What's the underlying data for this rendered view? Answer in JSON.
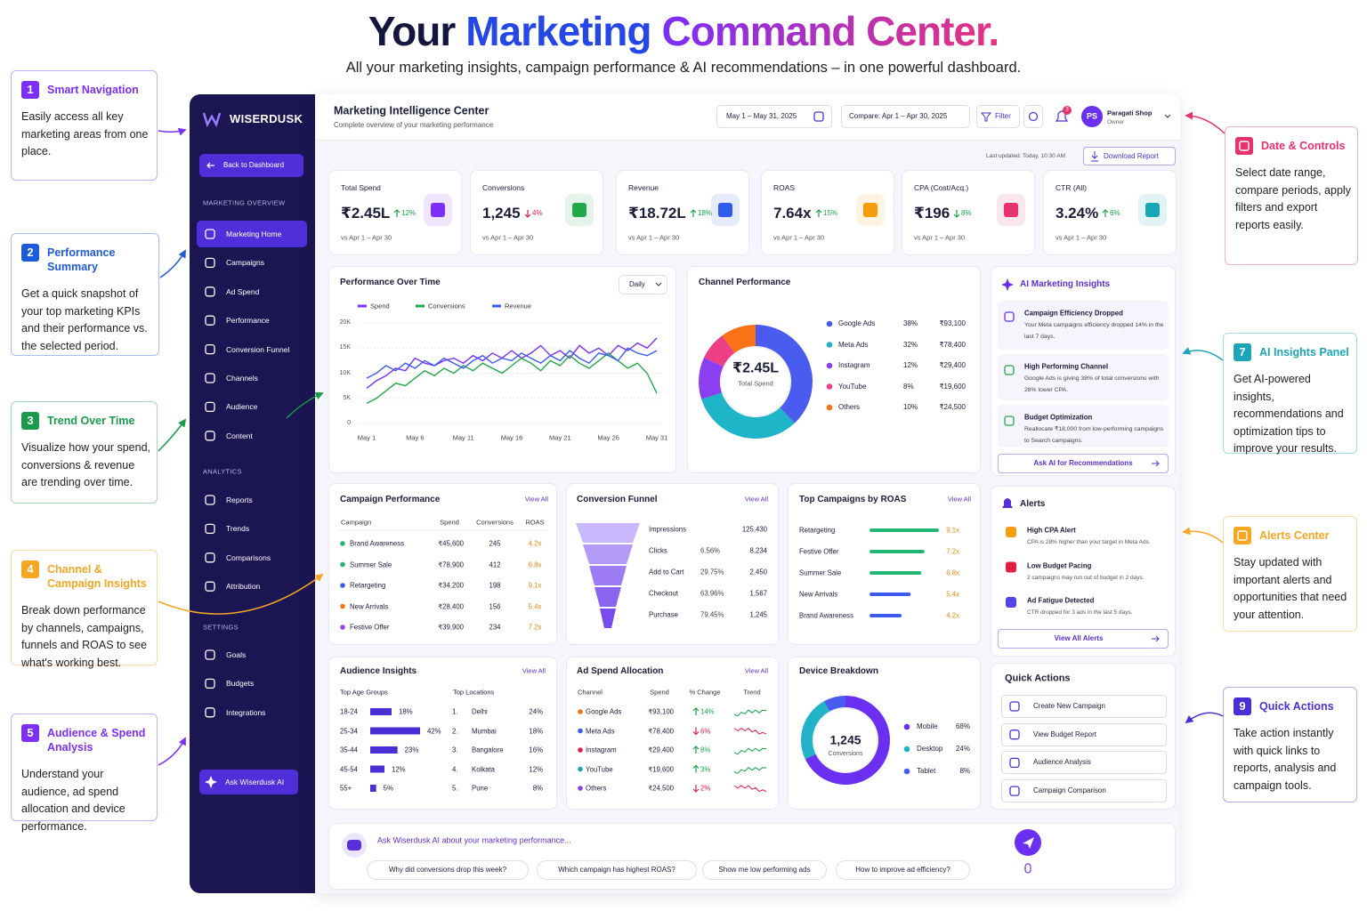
{
  "hero": {
    "title_parts": [
      "Your",
      "Marketing",
      "Command Center."
    ],
    "subtitle": "All your marketing insights, campaign performance & AI recommendations – in one powerful dashboard."
  },
  "callouts": [
    {
      "number": "1",
      "title": "Smart Navigation",
      "text": "Easily access all key marketing areas from one place.",
      "color": "#7b2ff7"
    },
    {
      "number": "2",
      "title": "Performance Summary",
      "text": "Get a quick snapshot of your top marketing KPIs and their performance vs. the selected period.",
      "color": "#1e5bd8"
    },
    {
      "number": "3",
      "title": "Trend Over Time",
      "text": "Visualize how your spend, conversions & revenue are trending over time.",
      "color": "#1a9a4a"
    },
    {
      "number": "4",
      "title": "Channel & Campaign Insights",
      "text": "Break down performance by channels, campaigns, funnels and ROAS to see what's working best.",
      "color": "#f5a623"
    },
    {
      "number": "5",
      "title": "Audience & Spend Analysis",
      "text": "Understand your audience, ad spend allocation and device performance.",
      "color": "#7b2ff7"
    },
    {
      "title": "Date & Controls",
      "text": "Select date range, compare periods, apply filters and export reports easily.",
      "color": "#e8326e"
    },
    {
      "number": "7",
      "title": "AI Insights Panel",
      "text": "Get AI-powered insights, recommendations and optimization tips to improve your results.",
      "color": "#1aa6b7"
    },
    {
      "title": "Alerts Center",
      "text": "Stay updated with important alerts and opportunities that need your attention.",
      "color": "#f5a623"
    },
    {
      "number": "9",
      "title": "Quick Actions",
      "text": "Take action instantly with quick links to reports, analysis and campaign tools.",
      "color": "#4b2fd6"
    }
  ],
  "sidebar": {
    "brand": "WISERDUSK",
    "back": "Back to Dashboard",
    "active": "Marketing Home",
    "sections": [
      {
        "title": "MARKETING OVERVIEW",
        "items": [
          "Marketing Home",
          "Campaigns",
          "Ad Spend",
          "Performance",
          "Conversion Funnel",
          "Channels",
          "Audience",
          "Content"
        ]
      },
      {
        "title": "ANALYTICS",
        "items": [
          "Reports",
          "Trends",
          "Comparisons",
          "Attribution"
        ]
      },
      {
        "title": "SETTINGS",
        "items": [
          "Goals",
          "Budgets",
          "Integrations"
        ]
      }
    ],
    "ask": "Ask Wiserdusk AI"
  },
  "header": {
    "title": "Marketing Intelligence Center",
    "subtitle": "Complete overview of your marketing performance",
    "date": "May 1 – May 31, 2025",
    "compare": "Compare: Apr 1 – Apr 30, 2025",
    "filter": "Filter",
    "notifications": "3",
    "avatar": "PS",
    "user": "Paragati Shop",
    "role": "Owner",
    "updated": "Last updated: Today, 10:30 AM",
    "download": "Download Report"
  },
  "kpis": [
    {
      "label": "Total Spend",
      "value": "₹2.45L",
      "change": "12%",
      "direction": "up",
      "color": "#16a34a",
      "icon_color": "#7b2ff7",
      "period": "vs Apr 1 – Apr 30"
    },
    {
      "label": "Conversions",
      "value": "1,245",
      "change": "4%",
      "direction": "down",
      "color": "#e11d48",
      "icon_color": "#22a84a",
      "period": "vs Apr 1 – Apr 30"
    },
    {
      "label": "Revenue",
      "value": "₹18.72L",
      "change": "18%",
      "direction": "up",
      "color": "#16a34a",
      "icon_color": "#2f5bea",
      "period": "vs Apr 1 – Apr 30"
    },
    {
      "label": "ROAS",
      "value": "7.64x",
      "change": "15%",
      "direction": "up",
      "color": "#16a34a",
      "icon_color": "#f59e0b",
      "period": "vs Apr 1 – Apr 30"
    },
    {
      "label": "CPA (Cost/Acq.)",
      "value": "₹196",
      "change": "8%",
      "direction": "down",
      "color": "#16a34a",
      "icon_color": "#e8326e",
      "period": "vs Apr 1 – Apr 30"
    },
    {
      "label": "CTR (All)",
      "value": "3.24%",
      "change": "6%",
      "direction": "up",
      "color": "#16a34a",
      "icon_color": "#1aa6b7",
      "period": "vs Apr 1 – Apr 30"
    }
  ],
  "performance_chart": {
    "type": "line",
    "title": "Performance Over Time",
    "period": "Daily",
    "categories": [
      "May 1",
      null,
      null,
      null,
      null,
      "May 6",
      null,
      null,
      null,
      null,
      "May 11",
      null,
      null,
      null,
      null,
      "May 16",
      null,
      null,
      null,
      null,
      "May 21",
      null,
      null,
      null,
      null,
      "May 26",
      null,
      null,
      null,
      null,
      "May 31"
    ],
    "series": [
      {
        "name": "Spend",
        "color": "#7b2ff7",
        "values": [
          7000,
          8500,
          9500,
          11000,
          10500,
          13000,
          12000,
          11500,
          12500,
          13000,
          12000,
          13500,
          12500,
          14000,
          13000,
          14500,
          13000,
          14000,
          15500,
          13500,
          14500,
          13000,
          15500,
          14000,
          15000,
          13500,
          15500,
          14500,
          16000,
          15000,
          17000
        ]
      },
      {
        "name": "Conversions",
        "color": "#22a84a",
        "values": [
          4000,
          5000,
          6500,
          8000,
          7500,
          9000,
          10500,
          9500,
          11000,
          10000,
          11500,
          10500,
          12000,
          11000,
          10000,
          11500,
          13000,
          12000,
          10500,
          12500,
          11500,
          13500,
          12000,
          11000,
          12500,
          14000,
          12500,
          11000,
          12000,
          10000,
          6000
        ]
      },
      {
        "name": "Revenue",
        "color": "#3b5bf0",
        "values": [
          9000,
          10000,
          11500,
          10500,
          12000,
          11000,
          12500,
          11500,
          13000,
          12000,
          11000,
          12500,
          13500,
          12000,
          13000,
          12500,
          14000,
          13000,
          12000,
          13500,
          12500,
          14500,
          13000,
          12000,
          14000,
          13500,
          12500,
          15000,
          14000,
          13500,
          14500
        ]
      }
    ],
    "ylim": [
      0,
      20000
    ],
    "yticks": [
      0,
      {
        "value": 5000,
        "label": "5K"
      },
      {
        "value": 10000,
        "label": "10K"
      },
      {
        "value": 15000,
        "label": "15K"
      },
      {
        "value": 20000,
        "label": "20K"
      }
    ],
    "grid": true
  },
  "channel_performance": {
    "type": "pie",
    "title": "Channel Performance",
    "center_value": "₹2.45L",
    "center_label": "Total Spend",
    "categories": [
      "Google Ads",
      "Meta Ads",
      "Instagram",
      "YouTube",
      "Others"
    ],
    "values": [
      38,
      32,
      12,
      8,
      10
    ],
    "value_labels": [
      "38%",
      "32%",
      "12%",
      "8%",
      "10%"
    ],
    "amounts": [
      "₹93,100",
      "₹78,400",
      "₹29,400",
      "₹19,600",
      "₹24,500"
    ],
    "colors": [
      "#4a5cf0",
      "#1fb5c9",
      "#8b3ff0",
      "#ec3f86",
      "#f97316"
    ]
  },
  "ai_insights": {
    "title": "AI Marketing Insights",
    "button": "Ask AI for Recommendations",
    "items": [
      {
        "title": "Campaign Efficiency Dropped",
        "text": "Your Meta campaigns efficiency dropped 14% in the last 7 days."
      },
      {
        "title": "High Performing Channel",
        "text": "Google Ads is giving 38% of total conversions with 28% lower CPA."
      },
      {
        "title": "Budget Optimization",
        "text": "Reallocate ₹18,000 from low-performing campaigns to Search campaigns."
      }
    ]
  },
  "campaign_performance": {
    "title": "Campaign Performance",
    "link": "View All",
    "columns": [
      "Campaign",
      "Spend",
      "Conversions",
      "ROAS"
    ],
    "rows": [
      [
        "Brand Awareness",
        "₹45,600",
        "245",
        "4.2x"
      ],
      [
        "Summer Sale",
        "₹78,900",
        "412",
        "6.8x"
      ],
      [
        "Retargeting",
        "₹34,200",
        "198",
        "9.1x"
      ],
      [
        "New Arrivals",
        "₹28,400",
        "156",
        "5.4x"
      ],
      [
        "Festive Offer",
        "₹39,900",
        "234",
        "7.2x"
      ]
    ],
    "colors": [
      "#22b573",
      "#22b573",
      "#3b5bf0",
      "#f97316",
      "#a23ff0"
    ]
  },
  "conversion_funnel": {
    "title": "Conversion Funnel",
    "link": "View All",
    "stages": [
      {
        "name": "Impressions",
        "count": "125,430"
      },
      {
        "name": "Clicks",
        "rate": "6.56%",
        "count": "8,234"
      },
      {
        "name": "Add to Cart",
        "rate": "29.75%",
        "count": "2,450"
      },
      {
        "name": "Checkout",
        "rate": "63.96%",
        "count": "1,567"
      },
      {
        "name": "Purchase",
        "rate": "79.45%",
        "count": "1,245"
      }
    ]
  },
  "top_campaigns": {
    "type": "bar",
    "title": "Top Campaigns by ROAS",
    "link": "View All",
    "categories": [
      "Retargeting",
      "Festive Offer",
      "Summer Sale",
      "New Arrivals",
      "Brand Awareness"
    ],
    "values": [
      9.1,
      7.2,
      6.8,
      5.4,
      4.2
    ],
    "value_labels": [
      "9.1x",
      "7.2x",
      "6.8x",
      "5.4x",
      "4.2x"
    ],
    "colors": [
      "#22b573",
      "#22b573",
      "#22b573",
      "#3b5bf0",
      "#3b5bf0"
    ]
  },
  "alerts": {
    "title": "Alerts",
    "button": "View All Alerts",
    "items": [
      {
        "title": "High CPA Alert",
        "text": "CPA is 28% higher than your target in Meta Ads.",
        "color": "#f59e0b"
      },
      {
        "title": "Low Budget Pacing",
        "text": "2 campaigns may run out of budget in 2 days.",
        "color": "#e11d48"
      },
      {
        "title": "Ad Fatigue Detected",
        "text": "CTR dropped for 3 ads in the last 5 days.",
        "color": "#4f46e5"
      }
    ]
  },
  "audience": {
    "title": "Audience Insights",
    "link": "View All",
    "age": {
      "type": "bar",
      "title": "Top Age Groups",
      "categories": [
        "18-24",
        "25-34",
        "35-44",
        "45-54",
        "55+"
      ],
      "values": [
        18,
        42,
        23,
        12,
        5
      ],
      "value_labels": [
        "18%",
        "42%",
        "23%",
        "12%",
        "5%"
      ],
      "color": "#4b2fd6"
    },
    "locations": {
      "title": "Top Locations",
      "rows": [
        [
          "1.",
          "Delhi",
          "24%"
        ],
        [
          "2.",
          "Mumbai",
          "18%"
        ],
        [
          "3.",
          "Bangalore",
          "16%"
        ],
        [
          "4.",
          "Kolkata",
          "12%"
        ],
        [
          "5.",
          "Pune",
          "8%"
        ]
      ]
    }
  },
  "ad_spend": {
    "title": "Ad Spend Allocation",
    "link": "View All",
    "columns": [
      "Channel",
      "Spend",
      "% Change",
      "Trend"
    ],
    "rows": [
      {
        "channel": "Google Ads",
        "spend": "₹93,100",
        "change": "14%",
        "direction": "up",
        "color": "#f97316"
      },
      {
        "channel": "Meta Ads",
        "spend": "₹78,400",
        "change": "6%",
        "direction": "down",
        "color": "#3b5bf0"
      },
      {
        "channel": "Instagram",
        "spend": "₹29,400",
        "change": "8%",
        "direction": "up",
        "color": "#e11d48"
      },
      {
        "channel": "YouTube",
        "spend": "₹19,600",
        "change": "3%",
        "direction": "up",
        "color": "#1aa6b7"
      },
      {
        "channel": "Others",
        "spend": "₹24,500",
        "change": "2%",
        "direction": "down",
        "color": "#8b3ff0"
      }
    ]
  },
  "device_breakdown": {
    "type": "pie",
    "title": "Device Breakdown",
    "center_value": "1,245",
    "center_label": "Conversions",
    "categories": [
      "Mobile",
      "Desktop",
      "Tablet"
    ],
    "values": [
      68,
      24,
      8
    ],
    "value_labels": [
      "68%",
      "24%",
      "8%"
    ],
    "colors": [
      "#6a2ff0",
      "#22b3c9",
      "#4a5cf0"
    ]
  },
  "quick_actions": {
    "title": "Quick Actions",
    "items": [
      "Create New Campaign",
      "View Budget Report",
      "Audience Analysis",
      "Campaign Comparison"
    ]
  },
  "chat": {
    "placeholder": "Ask Wiserdusk AI about your marketing performance...",
    "suggestions": [
      "Why did conversions drop this week?",
      "Which campaign has highest ROAS?",
      "Show me low performing ads",
      "How to improve ad efficiency?"
    ]
  }
}
